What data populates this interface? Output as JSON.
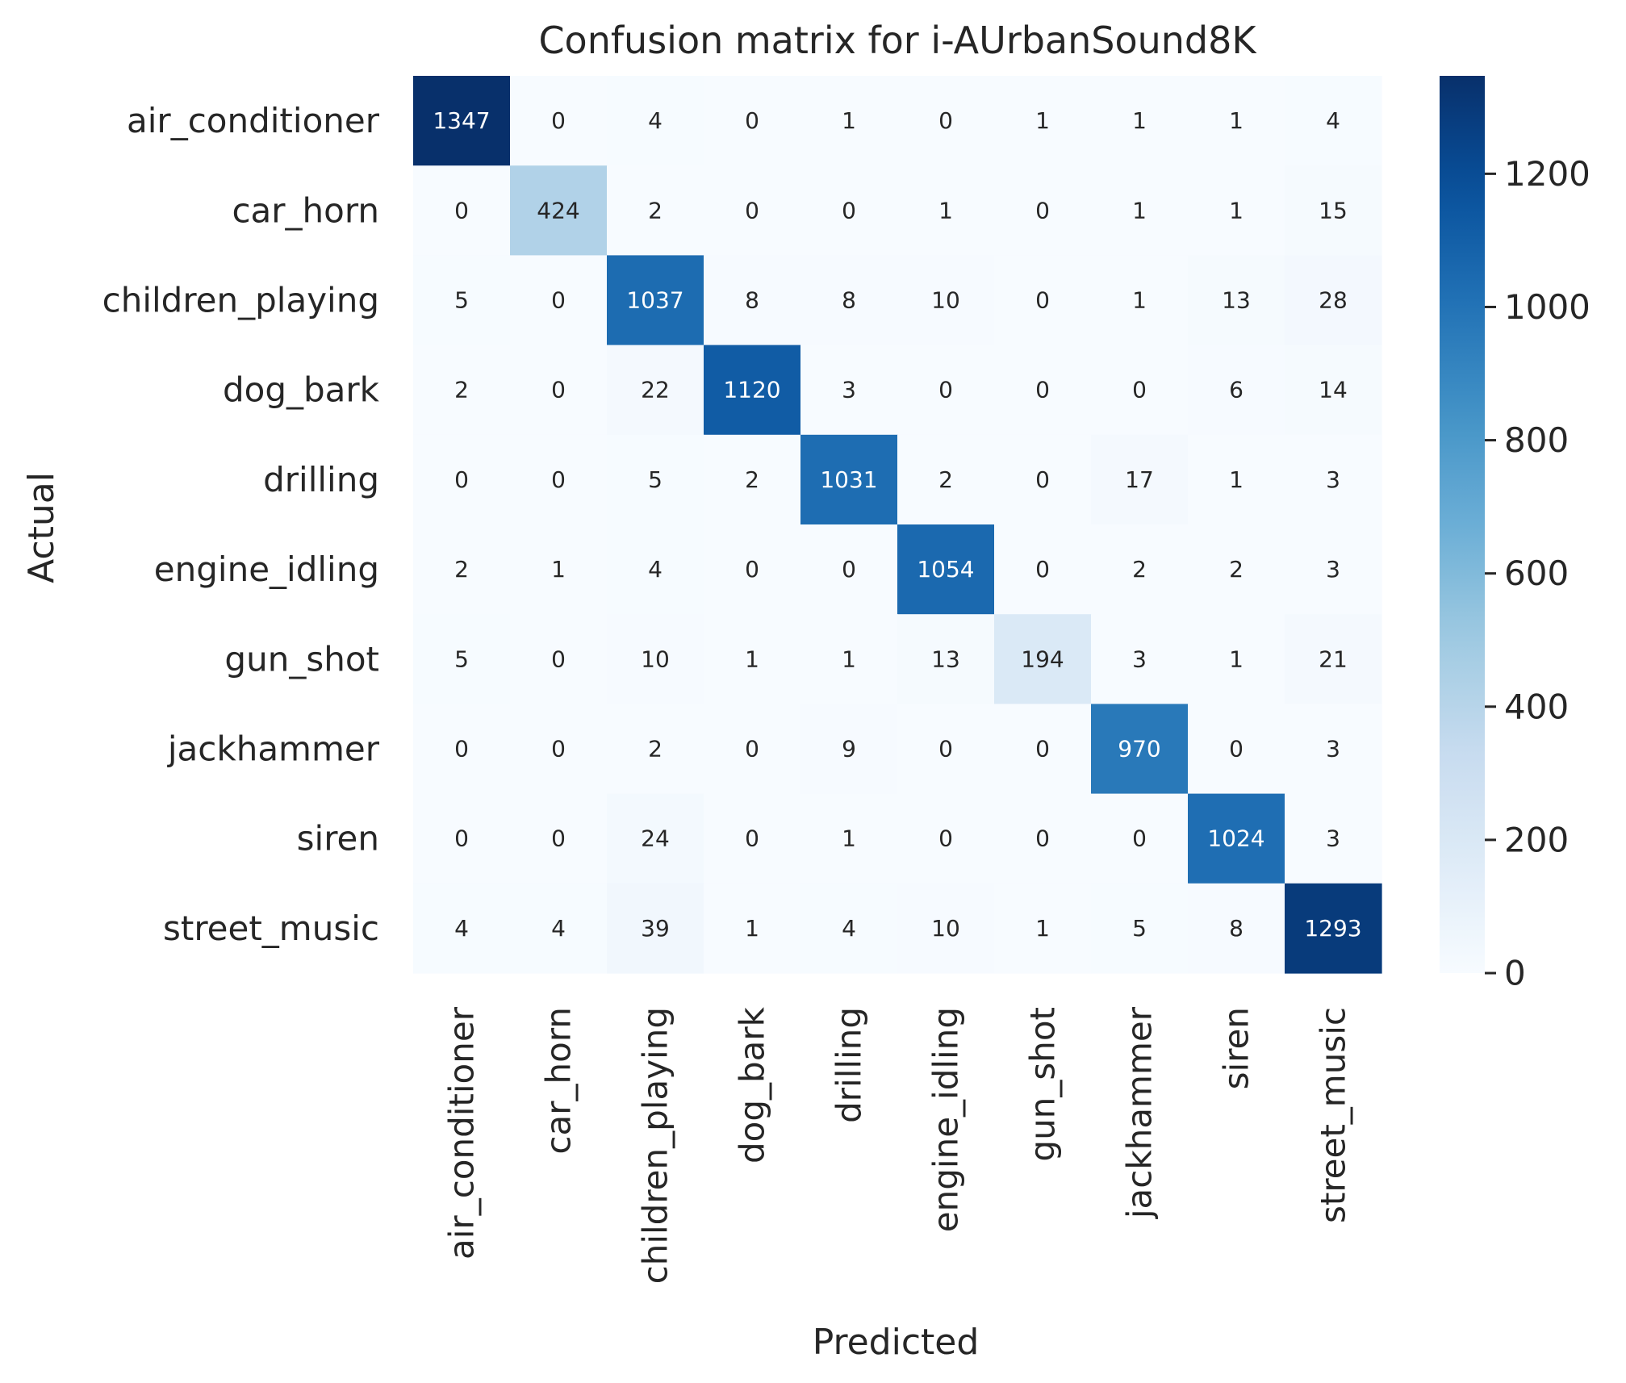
{
  "chart_data": {
    "type": "heatmap",
    "title": "Confusion matrix for i-AUrbanSound8K",
    "xlabel": "Predicted",
    "ylabel": "Actual",
    "x_categories": [
      "air_conditioner",
      "car_horn",
      "children_playing",
      "dog_bark",
      "drilling",
      "engine_idling",
      "gun_shot",
      "jackhammer",
      "siren",
      "street_music"
    ],
    "y_categories": [
      "air_conditioner",
      "car_horn",
      "children_playing",
      "dog_bark",
      "drilling",
      "engine_idling",
      "gun_shot",
      "jackhammer",
      "siren",
      "street_music"
    ],
    "values": [
      [
        1347,
        0,
        4,
        0,
        1,
        0,
        1,
        1,
        1,
        4
      ],
      [
        0,
        424,
        2,
        0,
        0,
        1,
        0,
        1,
        1,
        15
      ],
      [
        5,
        0,
        1037,
        8,
        8,
        10,
        0,
        1,
        13,
        28
      ],
      [
        2,
        0,
        22,
        1120,
        3,
        0,
        0,
        0,
        6,
        14
      ],
      [
        0,
        0,
        5,
        2,
        1031,
        2,
        0,
        17,
        1,
        3
      ],
      [
        2,
        1,
        4,
        0,
        0,
        1054,
        0,
        2,
        2,
        3
      ],
      [
        5,
        0,
        10,
        1,
        1,
        13,
        194,
        3,
        1,
        21
      ],
      [
        0,
        0,
        2,
        0,
        9,
        0,
        0,
        970,
        0,
        3
      ],
      [
        0,
        0,
        24,
        0,
        1,
        0,
        0,
        0,
        1024,
        3
      ],
      [
        4,
        4,
        39,
        1,
        4,
        10,
        1,
        5,
        8,
        1293
      ]
    ],
    "colormap": "Blues",
    "colorbar": {
      "range": [
        0,
        1347
      ],
      "ticks": [
        0,
        200,
        400,
        600,
        800,
        1000,
        1200
      ]
    },
    "grid": false,
    "legend": "colorbar-right"
  }
}
